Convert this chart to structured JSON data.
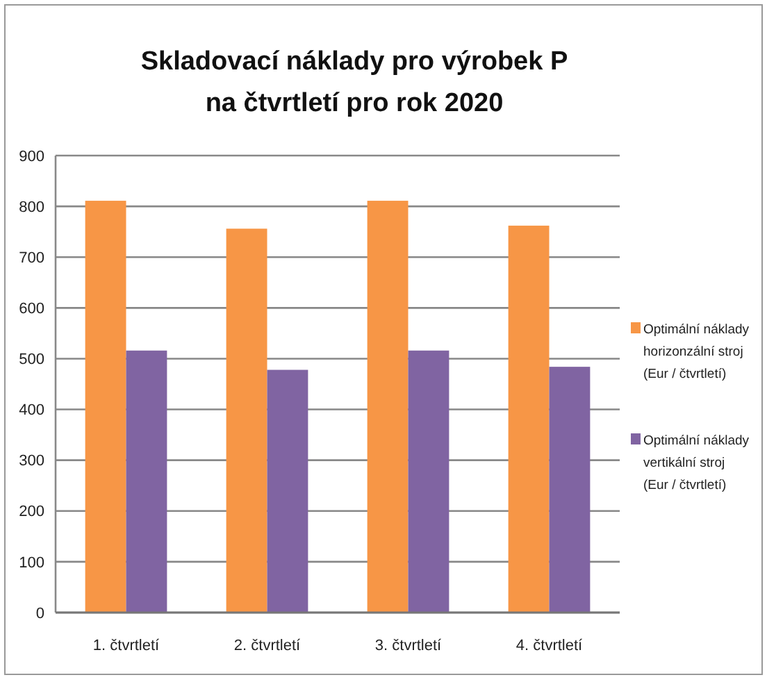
{
  "chart_data": {
    "type": "bar",
    "title": "Skladovací náklady pro výrobek P na čtvrtletí pro rok 2020",
    "categories": [
      "1. čtvrtletí",
      "2. čtvrtletí",
      "3. čtvrtletí",
      "4. čtvrtletí"
    ],
    "series": [
      {
        "name": "Optimální náklady horizonzální stroj (Eur / čtvrtletí)",
        "color": "#f79646",
        "values": [
          811,
          756,
          811,
          762
        ]
      },
      {
        "name": "Optimální náklady vertikální stroj (Eur / čtvrtletí)",
        "color": "#8064a2",
        "values": [
          516,
          478,
          516,
          484
        ]
      }
    ],
    "ylim": [
      0,
      900
    ],
    "yticks": [
      0,
      100,
      200,
      300,
      400,
      500,
      600,
      700,
      800,
      900
    ],
    "grid": "y",
    "legend": "right"
  }
}
